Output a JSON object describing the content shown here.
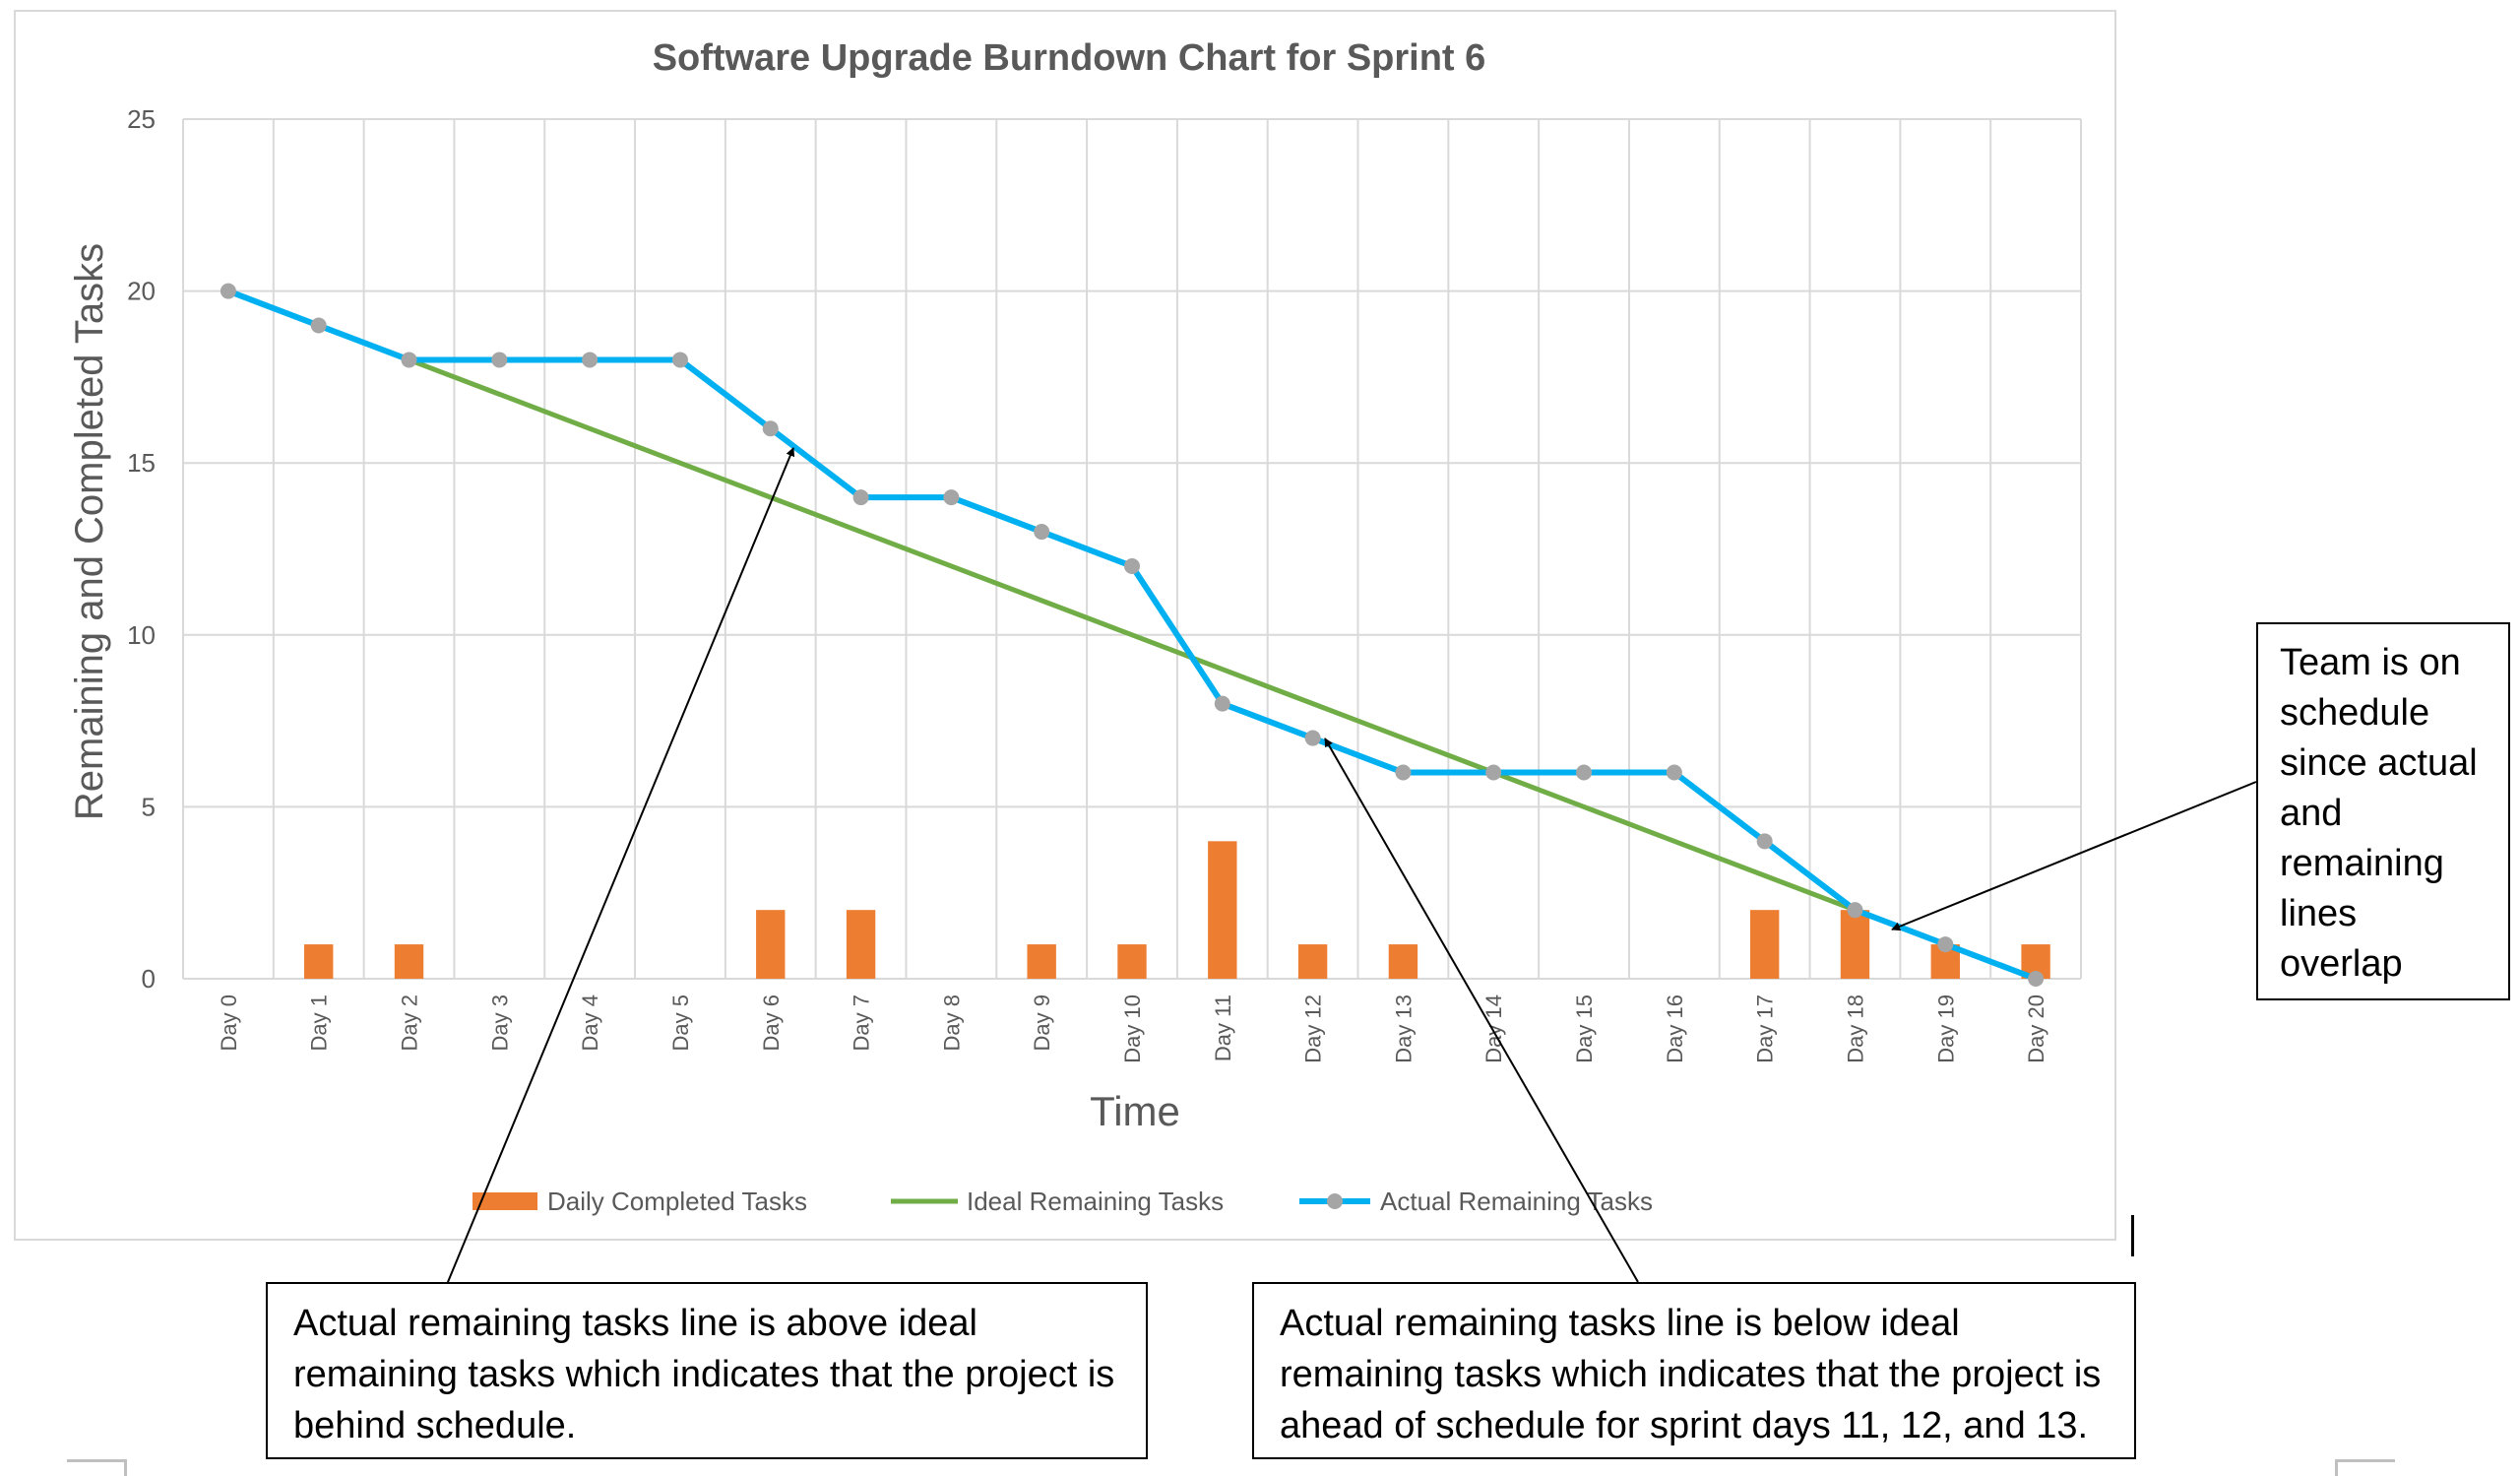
{
  "chart_data": {
    "type": "bar+line",
    "title": "Software Upgrade Burndown Chart for Sprint 6",
    "xlabel": "Time",
    "ylabel": "Remaining and Completed Tasks",
    "ylim": [
      0,
      25
    ],
    "yticks": [
      0,
      5,
      10,
      15,
      20,
      25
    ],
    "grid": true,
    "legend_position": "bottom",
    "categories": [
      "Day 0",
      "Day 1",
      "Day 2",
      "Day 3",
      "Day 4",
      "Day 5",
      "Day 6",
      "Day 7",
      "Day 8",
      "Day 9",
      "Day 10",
      "Day 11",
      "Day 12",
      "Day 13",
      "Day 14",
      "Day 15",
      "Day 16",
      "Day 17",
      "Day 18",
      "Day 19",
      "Day 20"
    ],
    "series": [
      {
        "name": "Daily Completed Tasks",
        "type": "bar",
        "color": "#ed7d31",
        "values": [
          0,
          1,
          1,
          0,
          0,
          0,
          2,
          2,
          0,
          1,
          1,
          4,
          1,
          1,
          0,
          0,
          0,
          2,
          2,
          1,
          1
        ]
      },
      {
        "name": "Ideal Remaining Tasks",
        "type": "line",
        "color": "#70ad47",
        "values": [
          null,
          null,
          18,
          17,
          16,
          15,
          14,
          13,
          12,
          11,
          10,
          9,
          8,
          7,
          6,
          5,
          4,
          3,
          2,
          1,
          0
        ]
      },
      {
        "name": "Actual Remaining Tasks",
        "type": "line",
        "color": "#00b0f0",
        "marker_color": "#a5a5a5",
        "values": [
          20,
          19,
          18,
          18,
          18,
          18,
          16,
          14,
          14,
          13,
          12,
          8,
          7,
          6,
          6,
          6,
          6,
          4,
          2,
          1,
          0
        ]
      }
    ]
  },
  "callouts": {
    "behind": {
      "line1": "Actual remaining tasks line is above ideal",
      "line2": "remaining tasks which indicates that the project is",
      "line3": "behind schedule."
    },
    "ahead": {
      "line1": "Actual remaining tasks line is below ideal",
      "line2": "remaining tasks which indicates that the project is",
      "line3": "ahead of schedule for sprint days 11, 12, and 13."
    },
    "on_schedule": {
      "line1": "Team is on",
      "line2": "schedule",
      "line3": "since actual",
      "line4": "and",
      "line5": "remaining",
      "line6": "lines",
      "line7": "overlap"
    }
  }
}
